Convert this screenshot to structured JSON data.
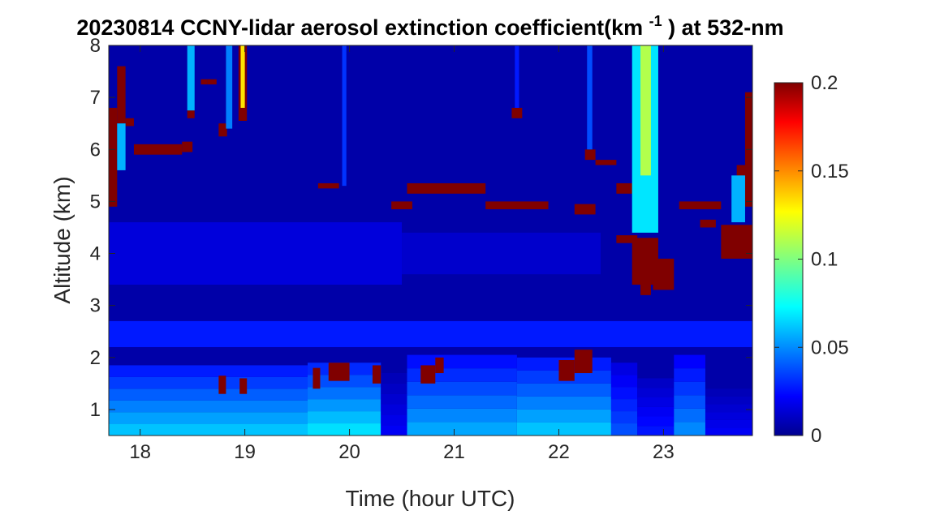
{
  "chart_data": {
    "type": "heatmap",
    "title": {
      "date": "20230814",
      "text_before_sup": "CCNY-lidar aerosol extinction coefficient(km",
      "superscript": "-1",
      "text_after_sup": ") at 532-nm"
    },
    "xlabel": "Time (hour UTC)",
    "ylabel": "Altitude (km)",
    "xlim": [
      17.7,
      23.85
    ],
    "ylim": [
      0.5,
      8.0
    ],
    "xticks": [
      18,
      19,
      20,
      21,
      22,
      23
    ],
    "xtick_labels": [
      "18",
      "19",
      "20",
      "21",
      "22",
      "23"
    ],
    "yticks": [
      1,
      2,
      3,
      4,
      5,
      6,
      7,
      8
    ],
    "ytick_labels": [
      "1",
      "2",
      "3",
      "4",
      "5",
      "6",
      "7",
      "8"
    ],
    "colorbar": {
      "colormap": "jet",
      "clim": [
        0,
        0.2
      ],
      "ticks": [
        0,
        0.05,
        0.1,
        0.15,
        0.2
      ],
      "tick_labels": [
        "0",
        "0.05",
        "0.1",
        "0.15",
        "0.2"
      ],
      "placement": "right"
    },
    "background_value": 0.008,
    "boundary_layer": [
      {
        "t0": 17.7,
        "t1": 19.6,
        "top": 1.85,
        "value": 0.055
      },
      {
        "t0": 19.6,
        "t1": 20.3,
        "top": 1.9,
        "value": 0.06
      },
      {
        "t0": 20.3,
        "t1": 20.55,
        "top": 1.7,
        "value": 0.02
      },
      {
        "t0": 20.55,
        "t1": 21.6,
        "top": 2.05,
        "value": 0.05
      },
      {
        "t0": 21.6,
        "t1": 22.5,
        "top": 2.0,
        "value": 0.055
      },
      {
        "t0": 22.5,
        "t1": 22.75,
        "top": 1.9,
        "value": 0.035
      },
      {
        "t0": 22.75,
        "t1": 23.1,
        "top": 1.6,
        "value": 0.025
      },
      {
        "t0": 23.1,
        "t1": 23.4,
        "top": 2.05,
        "value": 0.045
      },
      {
        "t0": 23.4,
        "t1": 23.85,
        "top": 1.4,
        "value": 0.02
      }
    ],
    "features": [
      {
        "label": "residual-layer",
        "t0": 17.7,
        "t1": 23.85,
        "z0": 2.2,
        "z1": 2.7,
        "value": 0.03
      },
      {
        "label": "lofted-aerosol",
        "t0": 17.7,
        "t1": 20.5,
        "z0": 3.4,
        "z1": 4.6,
        "value": 0.018
      },
      {
        "label": "lofted-aerosol",
        "t0": 20.5,
        "t1": 22.4,
        "z0": 3.6,
        "z1": 4.4,
        "value": 0.015
      },
      {
        "label": "cloud-low",
        "t0": 18.75,
        "t1": 18.82,
        "z0": 1.3,
        "z1": 1.65,
        "value": 0.2
      },
      {
        "label": "cloud-low",
        "t0": 18.95,
        "t1": 19.02,
        "z0": 1.3,
        "z1": 1.6,
        "value": 0.2
      },
      {
        "label": "cloud-low",
        "t0": 19.65,
        "t1": 19.72,
        "z0": 1.4,
        "z1": 1.8,
        "value": 0.2
      },
      {
        "label": "cloud-low",
        "t0": 19.8,
        "t1": 20.0,
        "z0": 1.55,
        "z1": 1.9,
        "value": 0.2
      },
      {
        "label": "cloud-low",
        "t0": 20.22,
        "t1": 20.3,
        "z0": 1.5,
        "z1": 1.85,
        "value": 0.2
      },
      {
        "label": "cloud-low",
        "t0": 20.68,
        "t1": 20.82,
        "z0": 1.5,
        "z1": 1.85,
        "value": 0.2
      },
      {
        "label": "cloud-low",
        "t0": 20.82,
        "t1": 20.9,
        "z0": 1.7,
        "z1": 2.0,
        "value": 0.2
      },
      {
        "label": "cloud-low",
        "t0": 22.0,
        "t1": 22.15,
        "z0": 1.55,
        "z1": 1.95,
        "value": 0.2
      },
      {
        "label": "cloud-low",
        "t0": 22.15,
        "t1": 22.32,
        "z0": 1.7,
        "z1": 2.15,
        "value": 0.2
      },
      {
        "label": "cloud-high",
        "t0": 17.7,
        "t1": 17.78,
        "z0": 4.9,
        "z1": 6.8,
        "value": 0.2
      },
      {
        "label": "cloud-high",
        "t0": 17.78,
        "t1": 17.86,
        "z0": 6.5,
        "z1": 7.6,
        "value": 0.2
      },
      {
        "label": "cloud-high",
        "t0": 17.86,
        "t1": 17.94,
        "z0": 6.45,
        "z1": 6.6,
        "value": 0.2
      },
      {
        "label": "cloud-high",
        "t0": 17.94,
        "t1": 18.4,
        "z0": 5.9,
        "z1": 6.1,
        "value": 0.2
      },
      {
        "label": "cloud-high",
        "t0": 18.4,
        "t1": 18.5,
        "z0": 5.95,
        "z1": 6.15,
        "value": 0.2
      },
      {
        "label": "cloud-high",
        "t0": 18.45,
        "t1": 18.52,
        "z0": 6.6,
        "z1": 6.75,
        "value": 0.2
      },
      {
        "label": "cloud-high",
        "t0": 18.58,
        "t1": 18.64,
        "z0": 7.25,
        "z1": 7.35,
        "value": 0.2
      },
      {
        "label": "cloud-high",
        "t0": 18.64,
        "t1": 18.73,
        "z0": 7.25,
        "z1": 7.35,
        "value": 0.2
      },
      {
        "label": "cloud-high",
        "t0": 18.75,
        "t1": 18.83,
        "z0": 6.25,
        "z1": 6.5,
        "value": 0.2
      },
      {
        "label": "cloud-high",
        "t0": 18.94,
        "t1": 19.02,
        "z0": 6.55,
        "z1": 8.0,
        "value": 0.2
      },
      {
        "label": "cloud-high",
        "t0": 18.96,
        "t1": 19.0,
        "z0": 6.8,
        "z1": 8.0,
        "value": 0.13
      },
      {
        "label": "cloud-high",
        "t0": 19.7,
        "t1": 19.9,
        "z0": 5.25,
        "z1": 5.35,
        "value": 0.2
      },
      {
        "label": "cloud-high",
        "t0": 20.4,
        "t1": 20.6,
        "z0": 4.85,
        "z1": 5.0,
        "value": 0.2
      },
      {
        "label": "cloud-high",
        "t0": 20.55,
        "t1": 21.3,
        "z0": 5.15,
        "z1": 5.35,
        "value": 0.2
      },
      {
        "label": "cloud-high",
        "t0": 21.3,
        "t1": 21.9,
        "z0": 4.85,
        "z1": 5.0,
        "value": 0.2
      },
      {
        "label": "cloud-high",
        "t0": 21.55,
        "t1": 21.65,
        "z0": 6.6,
        "z1": 6.8,
        "value": 0.2
      },
      {
        "label": "cloud-high",
        "t0": 22.25,
        "t1": 22.35,
        "z0": 5.8,
        "z1": 6.0,
        "value": 0.2
      },
      {
        "label": "cloud-high",
        "t0": 22.35,
        "t1": 22.55,
        "z0": 5.7,
        "z1": 5.8,
        "value": 0.2
      },
      {
        "label": "cloud-high",
        "t0": 22.55,
        "t1": 22.7,
        "z0": 5.15,
        "z1": 5.35,
        "value": 0.2
      },
      {
        "label": "cloud-high",
        "t0": 22.15,
        "t1": 22.35,
        "z0": 4.75,
        "z1": 4.95,
        "value": 0.2
      },
      {
        "label": "cloud-high",
        "t0": 22.55,
        "t1": 22.75,
        "z0": 4.2,
        "z1": 4.35,
        "value": 0.2
      },
      {
        "label": "cloud-high",
        "t0": 22.7,
        "t1": 22.95,
        "z0": 3.4,
        "z1": 4.3,
        "value": 0.2
      },
      {
        "label": "cloud-high",
        "t0": 22.78,
        "t1": 22.88,
        "z0": 3.2,
        "z1": 3.6,
        "value": 0.2
      },
      {
        "label": "cloud-high",
        "t0": 22.9,
        "t1": 23.1,
        "z0": 3.3,
        "z1": 3.9,
        "value": 0.2
      },
      {
        "label": "cloud-high",
        "t0": 23.15,
        "t1": 23.55,
        "z0": 4.85,
        "z1": 5.0,
        "value": 0.2
      },
      {
        "label": "cloud-high",
        "t0": 23.35,
        "t1": 23.5,
        "z0": 4.5,
        "z1": 4.65,
        "value": 0.2
      },
      {
        "label": "cloud-high",
        "t0": 23.55,
        "t1": 23.85,
        "z0": 3.9,
        "z1": 4.55,
        "value": 0.2
      },
      {
        "label": "cloud-high",
        "t0": 23.7,
        "t1": 23.78,
        "z0": 5.3,
        "z1": 5.7,
        "value": 0.2
      },
      {
        "label": "cloud-high",
        "t0": 23.78,
        "t1": 23.85,
        "z0": 4.9,
        "z1": 7.1,
        "value": 0.2
      },
      {
        "label": "thin-cirrus",
        "t0": 18.45,
        "t1": 18.52,
        "z0": 6.75,
        "z1": 8.0,
        "value": 0.06
      },
      {
        "label": "thin-cirrus",
        "t0": 18.82,
        "t1": 18.88,
        "z0": 6.4,
        "z1": 8.0,
        "value": 0.05
      },
      {
        "label": "thin-cirrus",
        "t0": 19.93,
        "t1": 19.97,
        "z0": 5.3,
        "z1": 8.0,
        "value": 0.035
      },
      {
        "label": "thin-cirrus",
        "t0": 21.58,
        "t1": 21.62,
        "z0": 6.8,
        "z1": 8.0,
        "value": 0.03
      },
      {
        "label": "thin-cirrus",
        "t0": 22.27,
        "t1": 22.32,
        "z0": 6.0,
        "z1": 8.0,
        "value": 0.04
      },
      {
        "label": "thin-cirrus",
        "t0": 22.7,
        "t1": 22.95,
        "z0": 4.4,
        "z1": 8.0,
        "value": 0.07
      },
      {
        "label": "thin-cirrus",
        "t0": 22.78,
        "t1": 22.88,
        "z0": 5.5,
        "z1": 8.0,
        "value": 0.11
      },
      {
        "label": "thin-cirrus",
        "t0": 23.65,
        "t1": 23.78,
        "z0": 4.6,
        "z1": 5.5,
        "value": 0.06
      },
      {
        "label": "thin-cirrus",
        "t0": 17.78,
        "t1": 17.86,
        "z0": 5.6,
        "z1": 6.5,
        "value": 0.06
      }
    ]
  }
}
